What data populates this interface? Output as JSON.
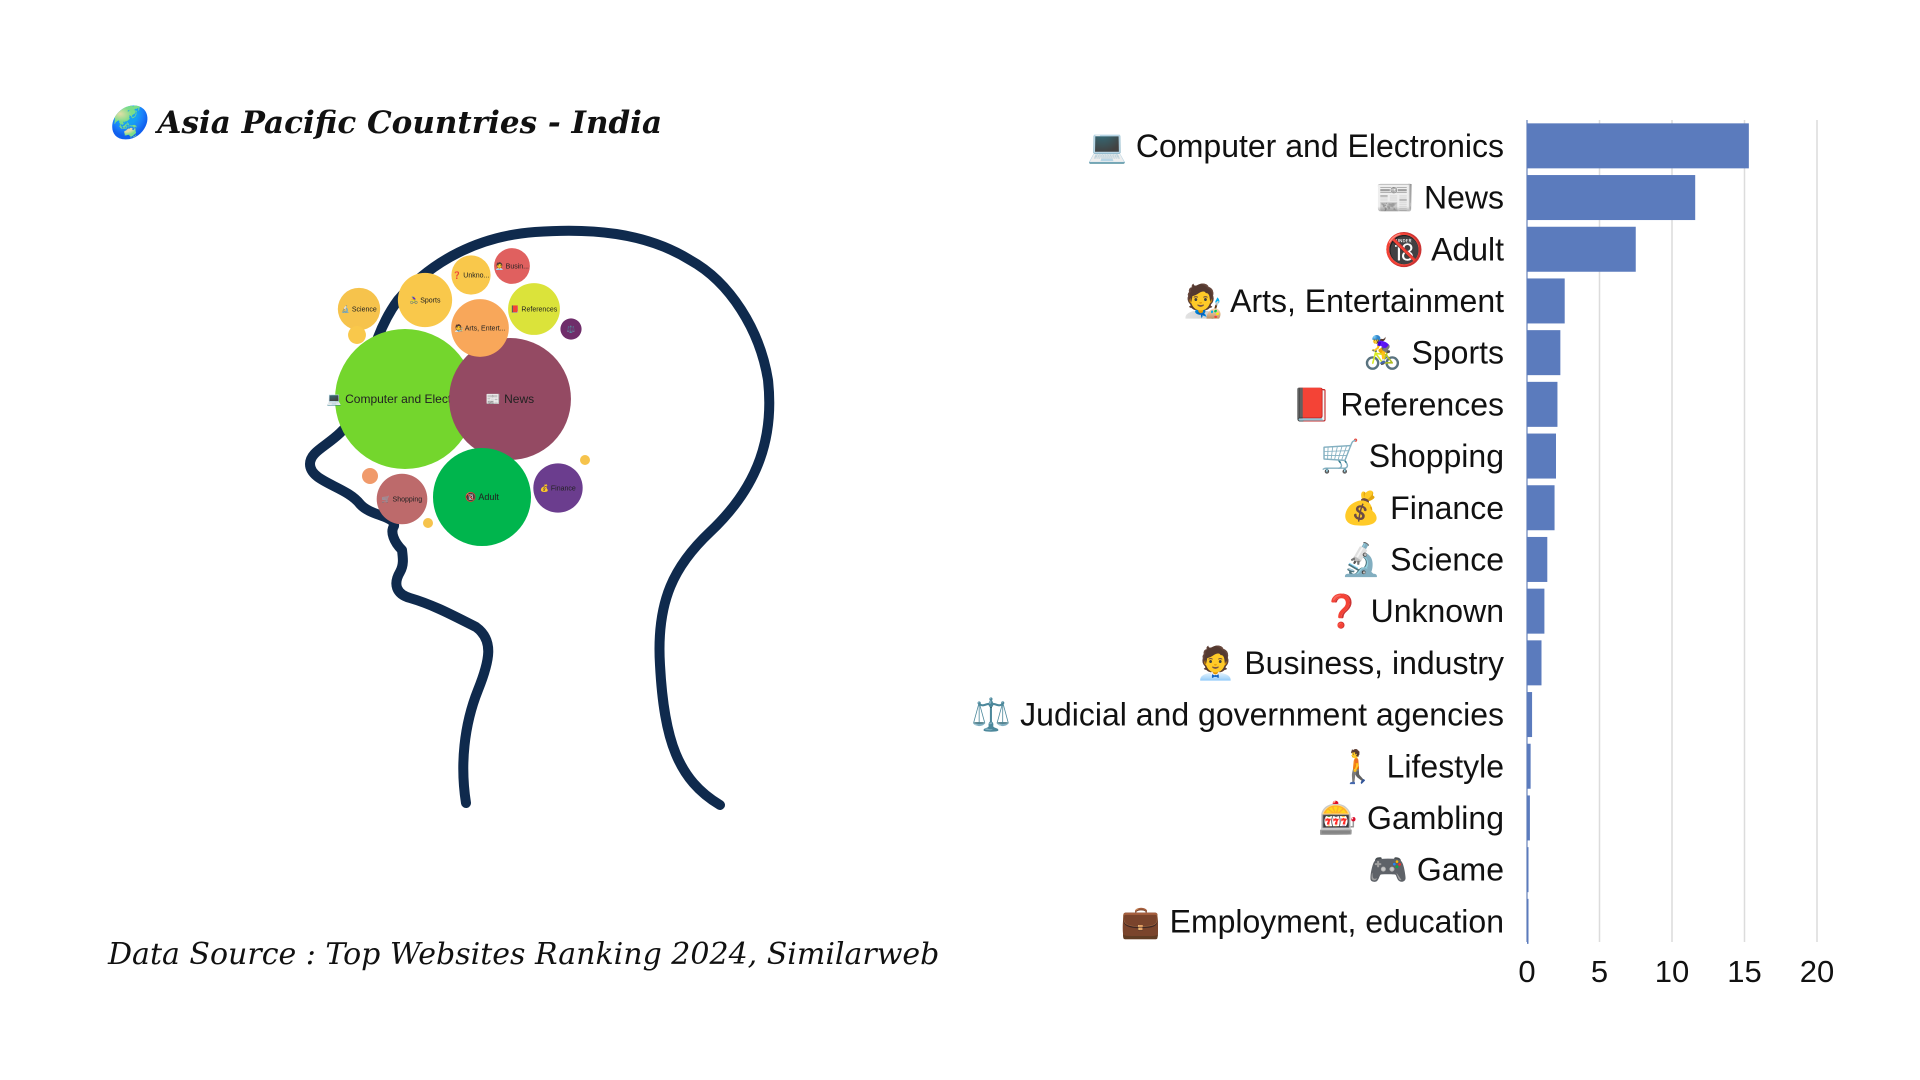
{
  "header": {
    "globe_icon": "🌏",
    "title": "Asia Pacific Countries - India"
  },
  "footer": {
    "source": "Data Source : Top Websites Ranking 2024, Similarweb"
  },
  "colors": {
    "bar": "#5b7bbd",
    "grid": "#dcdcdc",
    "head_outline": "#0f2a4d",
    "text": "#111111"
  },
  "chart_data": [
    {
      "type": "bubble",
      "chart": "packed-bubbles-in-head",
      "bubbles": [
        {
          "label": "💻 Computer and Electronics",
          "value": 15.3,
          "color": "#74d62d"
        },
        {
          "label": "📰 News",
          "value": 11.6,
          "color": "#944a63"
        },
        {
          "label": "🔞 Adult",
          "value": 7.5,
          "color": "#00b54d"
        },
        {
          "label": "🧑‍🎨 Arts, Entert...",
          "value": 2.6,
          "color": "#f8a75a"
        },
        {
          "label": "🚴‍♀️ Sports",
          "value": 2.3,
          "color": "#f9c84b"
        },
        {
          "label": "📕 References",
          "value": 2.1,
          "color": "#dbe33a"
        },
        {
          "label": "🛒 Shopping",
          "value": 2.0,
          "color": "#bd6a6b"
        },
        {
          "label": "💰 Finance",
          "value": 1.9,
          "color": "#6b3d8e"
        },
        {
          "label": "🔬 Science",
          "value": 1.4,
          "color": "#f6c34c"
        },
        {
          "label": "❓ Unkno...",
          "value": 1.2,
          "color": "#f9c84b"
        },
        {
          "label": "🧑‍💼 Busin...",
          "value": 1.0,
          "color": "#e0605f"
        },
        {
          "label": "⚖️",
          "value": 0.35,
          "color": "#6f2d6a"
        },
        {
          "label": "🚶",
          "value": 0.25,
          "color": "#f9c84b"
        },
        {
          "label": "🎰",
          "value": 0.2,
          "color": "#f09a6b"
        },
        {
          "label": "🎮",
          "value": 0.05,
          "color": "#f6c34c"
        },
        {
          "label": "💼",
          "value": 0.04,
          "color": "#f6c34c"
        }
      ]
    },
    {
      "type": "bar",
      "orientation": "horizontal",
      "categories": [
        "💻 Computer and Electronics",
        "📰 News",
        "🔞 Adult",
        "🧑‍🎨 Arts, Entertainment",
        "🚴‍♀️ Sports",
        "📕 References",
        "🛒 Shopping",
        "💰 Finance",
        "🔬 Science",
        "❓ Unknown",
        "🧑‍💼 Business, industry",
        "⚖️ Judicial and government agencies",
        "🚶 Lifestyle",
        "🎰 Gambling",
        "🎮 Game",
        "💼 Employment, education"
      ],
      "values": [
        15.3,
        11.6,
        7.5,
        2.6,
        2.3,
        2.1,
        2.0,
        1.9,
        1.4,
        1.2,
        1.0,
        0.35,
        0.25,
        0.2,
        0.05,
        0.04
      ],
      "xticks": [
        "0",
        "5",
        "10",
        "15",
        "20"
      ],
      "xlim": [
        0,
        20
      ],
      "grid": "vertical",
      "xlabel": "",
      "ylabel": ""
    }
  ]
}
